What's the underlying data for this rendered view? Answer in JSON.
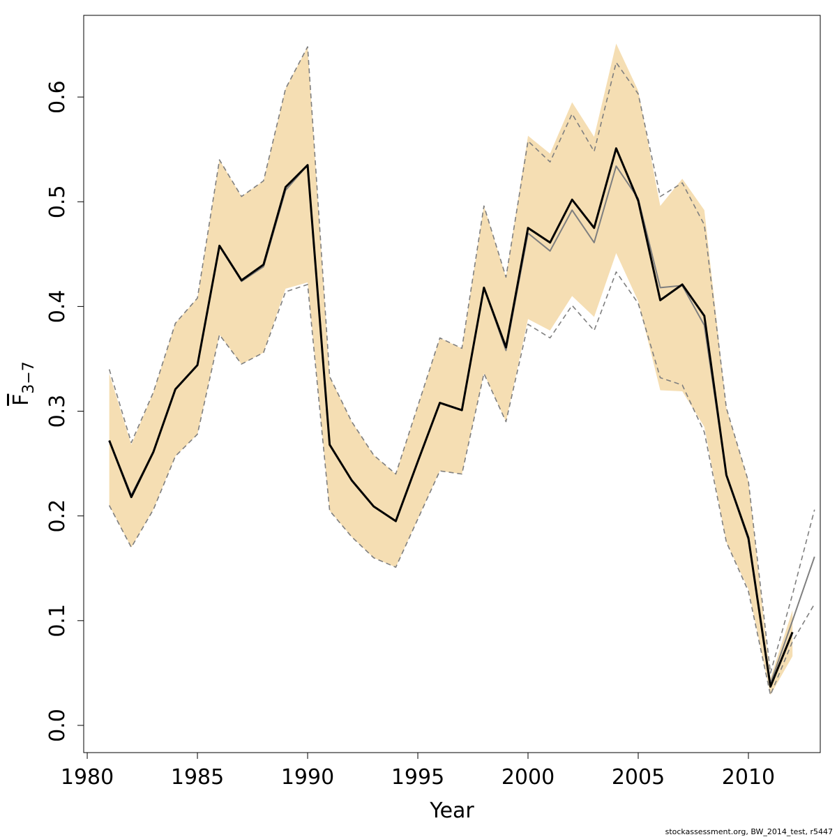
{
  "chart_data": {
    "type": "line",
    "xlabel": "Year",
    "ylabel": "F",
    "ylabel_sub": "3−7",
    "footnote": "stockassessment.org, BW_2014_test, r5447",
    "x": [
      1981,
      1982,
      1983,
      1984,
      1985,
      1986,
      1987,
      1988,
      1989,
      1990,
      1991,
      1992,
      1993,
      1994,
      1995,
      1996,
      1997,
      1998,
      1999,
      2000,
      2001,
      2002,
      2003,
      2004,
      2005,
      2006,
      2007,
      2008,
      2009,
      2010,
      2011,
      2012,
      2013
    ],
    "band": {
      "color": "#f5deb3",
      "lower": [
        0.21,
        0.17,
        0.206,
        0.257,
        0.278,
        0.373,
        0.345,
        0.356,
        0.417,
        0.423,
        0.205,
        0.18,
        0.16,
        0.151,
        0.197,
        0.243,
        0.24,
        0.336,
        0.29,
        0.388,
        0.377,
        0.41,
        0.39,
        0.451,
        0.405,
        0.32,
        0.319,
        0.285,
        0.175,
        0.13,
        0.029,
        0.066,
        null
      ],
      "upper": [
        0.336,
        0.268,
        0.318,
        0.384,
        0.408,
        0.54,
        0.505,
        0.52,
        0.608,
        0.648,
        0.333,
        0.29,
        0.258,
        0.24,
        0.305,
        0.37,
        0.36,
        0.496,
        0.428,
        0.563,
        0.546,
        0.595,
        0.562,
        0.651,
        0.606,
        0.496,
        0.522,
        0.492,
        0.303,
        0.233,
        0.045,
        0.11,
        null
      ]
    },
    "series": [
      {
        "color": "#7f7f7f",
        "width": 1.6,
        "dash": "7,5",
        "values": [
          0.21,
          0.17,
          0.206,
          0.257,
          0.278,
          0.373,
          0.345,
          0.356,
          0.414,
          0.421,
          0.205,
          0.18,
          0.16,
          0.151,
          0.197,
          0.243,
          0.24,
          0.336,
          0.29,
          0.383,
          0.37,
          0.401,
          0.377,
          0.433,
          0.403,
          0.332,
          0.325,
          0.28,
          0.175,
          0.128,
          0.029,
          0.08,
          0.116
        ]
      },
      {
        "color": "#7f7f7f",
        "width": 1.6,
        "dash": "7,5",
        "values": [
          0.34,
          0.27,
          0.318,
          0.384,
          0.408,
          0.54,
          0.505,
          0.52,
          0.608,
          0.648,
          0.333,
          0.29,
          0.258,
          0.24,
          0.305,
          0.37,
          0.36,
          0.496,
          0.428,
          0.558,
          0.538,
          0.584,
          0.548,
          0.633,
          0.603,
          0.505,
          0.518,
          0.478,
          0.303,
          0.233,
          0.05,
          0.125,
          0.206
        ]
      },
      {
        "color": "#7f7f7f",
        "width": 2,
        "dash": null,
        "values": [
          0.272,
          0.22,
          0.261,
          0.321,
          0.344,
          0.458,
          0.424,
          0.438,
          0.511,
          0.535,
          0.268,
          0.234,
          0.209,
          0.195,
          0.252,
          0.308,
          0.301,
          0.418,
          0.358,
          0.47,
          0.453,
          0.492,
          0.461,
          0.534,
          0.503,
          0.418,
          0.42,
          0.382,
          0.239,
          0.177,
          0.04,
          0.1,
          0.161
        ]
      },
      {
        "color": "#000000",
        "width": 3,
        "dash": null,
        "values": [
          0.272,
          0.218,
          0.261,
          0.321,
          0.344,
          0.458,
          0.425,
          0.44,
          0.514,
          0.535,
          0.268,
          0.234,
          0.209,
          0.195,
          0.252,
          0.308,
          0.301,
          0.418,
          0.361,
          0.475,
          0.461,
          0.502,
          0.475,
          0.551,
          0.501,
          0.406,
          0.421,
          0.391,
          0.239,
          0.179,
          0.037,
          0.089,
          null
        ]
      }
    ],
    "xlim": [
      1979.84,
      2013.26
    ],
    "ylim": [
      -0.026,
      0.678
    ],
    "xticks": [
      1980,
      1985,
      1990,
      1995,
      2000,
      2005,
      2010
    ],
    "yticks": [
      {
        "value": 0,
        "label": "0.0"
      },
      0.1,
      0.2,
      0.3,
      0.4,
      0.5,
      0.6
    ]
  }
}
